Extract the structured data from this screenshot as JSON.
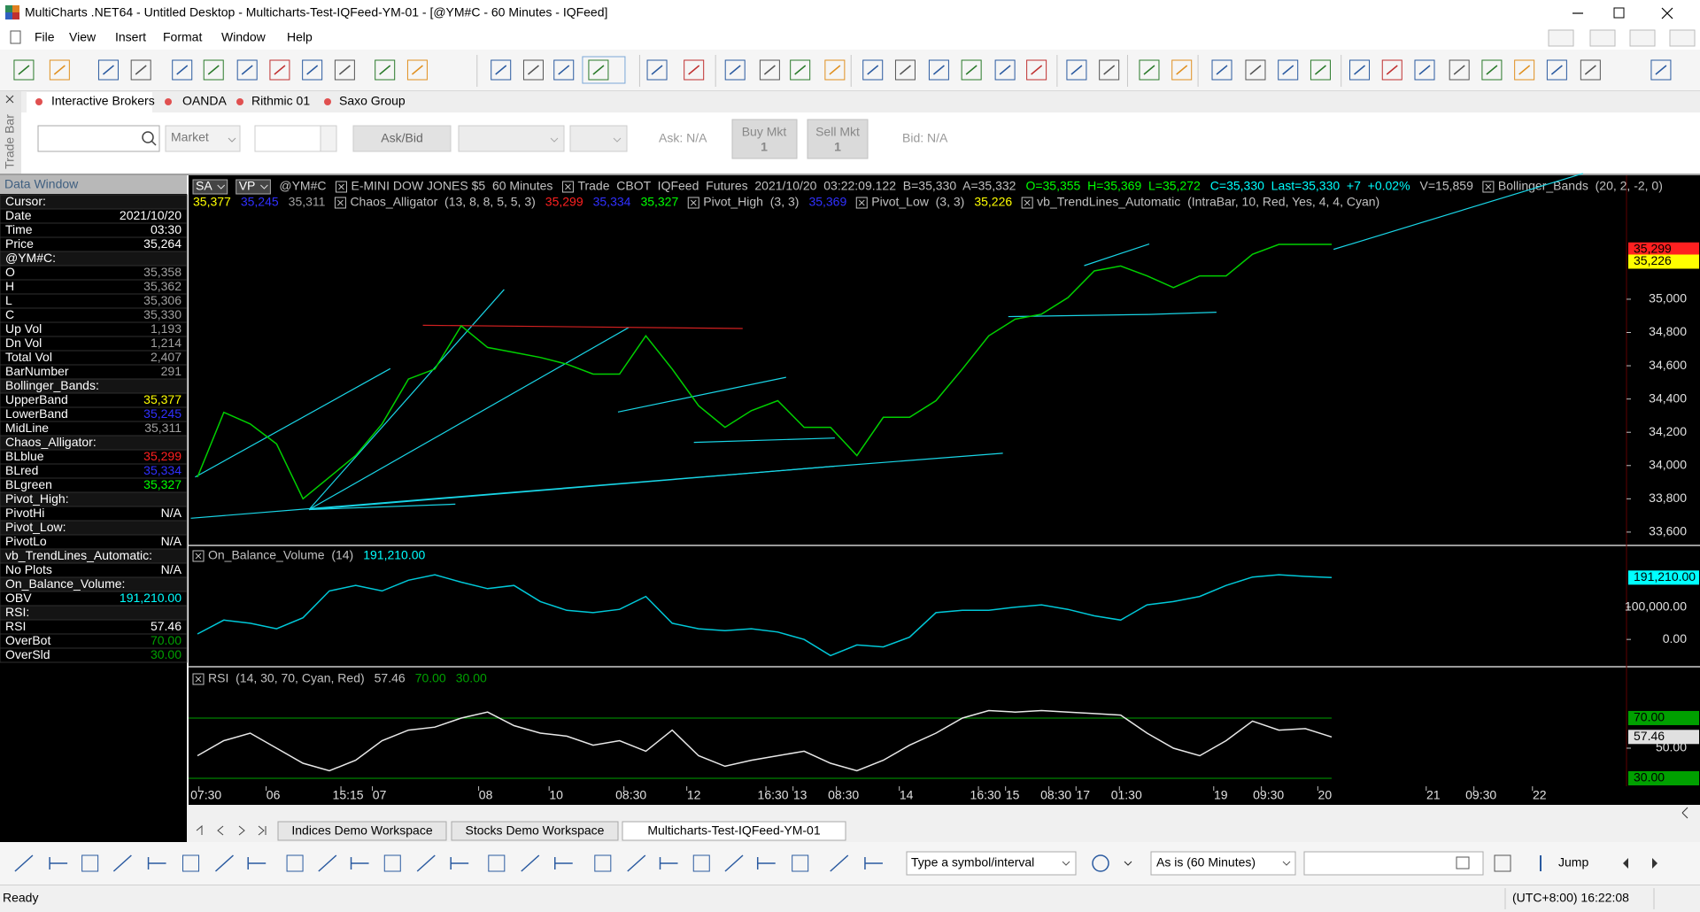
{
  "window": {
    "title": "MultiCharts .NET64 - Untitled Desktop - Multicharts-Test-IQFeed-YM-01 - [@YM#C - 60 Minutes - IQFeed]"
  },
  "menu": [
    "File",
    "View",
    "Insert",
    "Format",
    "Window",
    "Help"
  ],
  "trade_bar": {
    "side_label": "Trade Bar",
    "tabs": [
      "Interactive Brokers",
      "OANDA",
      "Rithmic 01",
      "Saxo Group"
    ],
    "order_type": "Market",
    "price_source": "Ask/Bid",
    "buy": {
      "label": "Buy Mkt",
      "qty": "1"
    },
    "sell": {
      "label": "Sell Mkt",
      "qty": "1"
    },
    "ask": "Ask: N/A",
    "bid": "Bid: N/A"
  },
  "data_window": {
    "title": "Data Window",
    "rows": [
      {
        "label": "Cursor:"
      },
      {
        "label": "Date",
        "value": "2021/10/20"
      },
      {
        "label": "Time",
        "value": "03:30"
      },
      {
        "label": "Price",
        "value": "35,264"
      },
      {
        "label": "@YM#C:"
      },
      {
        "label": "O",
        "value": "35,358",
        "color": "#a0a0a0"
      },
      {
        "label": "H",
        "value": "35,362",
        "color": "#a0a0a0"
      },
      {
        "label": "L",
        "value": "35,306",
        "color": "#a0a0a0"
      },
      {
        "label": "C",
        "value": "35,330",
        "color": "#a0a0a0"
      },
      {
        "label": "Up Vol",
        "value": "1,193",
        "color": "#a0a0a0"
      },
      {
        "label": "Dn Vol",
        "value": "1,214",
        "color": "#a0a0a0"
      },
      {
        "label": "Total Vol",
        "value": "2,407",
        "color": "#a0a0a0"
      },
      {
        "label": "BarNumber",
        "value": "291",
        "color": "#a0a0a0"
      },
      {
        "label": "Bollinger_Bands:"
      },
      {
        "label": "UpperBand",
        "value": "35,377",
        "color": "#ffff00"
      },
      {
        "label": "LowerBand",
        "value": "35,245",
        "color": "#3030ff"
      },
      {
        "label": "MidLine",
        "value": "35,311",
        "color": "#a0a0a0"
      },
      {
        "label": "Chaos_Alligator:"
      },
      {
        "label": "BLblue",
        "value": "35,299",
        "color": "#ff2020"
      },
      {
        "label": "BLred",
        "value": "35,334",
        "color": "#3030ff"
      },
      {
        "label": "BLgreen",
        "value": "35,327",
        "color": "#00ff00"
      },
      {
        "label": "Pivot_High:"
      },
      {
        "label": "PivotHi",
        "value": "N/A"
      },
      {
        "label": "Pivot_Low:"
      },
      {
        "label": "PivotLo",
        "value": "N/A"
      },
      {
        "label": "vb_TrendLines_Automatic:"
      },
      {
        "label": "No Plots",
        "value": "N/A"
      },
      {
        "label": "On_Balance_Volume:"
      },
      {
        "label": "OBV",
        "value": "191,210.00",
        "color": "#00ffff"
      },
      {
        "label": "RSI:"
      },
      {
        "label": "RSI",
        "value": "57.46"
      },
      {
        "label": "OverBot",
        "value": "70.00",
        "color": "#00a000"
      },
      {
        "label": "OverSld",
        "value": "30.00",
        "color": "#00a000"
      }
    ]
  },
  "chart": {
    "header": [
      {
        "text": "SA",
        "color": "#ffffff",
        "boxed": true
      },
      {
        "text": "VP",
        "color": "#ffffff",
        "boxed": true
      },
      {
        "text": "@YM#C",
        "color": "#c0c0c0"
      },
      {
        "text": "E-MINI DOW JONES $5  60 Minutes",
        "color": "#c0c0c0",
        "checkbox": true
      },
      {
        "text": "Trade  CBOT  IQFeed  Futures  2021/10/20  03:22:09.122  B=35,330  A=35,332",
        "color": "#c0c0c0",
        "checkbox": true
      },
      {
        "text": "O=35,355  H=35,369  L=35,272",
        "color": "#00ff00"
      },
      {
        "text": "C=35,330  Last=35,330  +7  +0.02%",
        "color": "#00ffff"
      },
      {
        "text": "V=15,859",
        "color": "#c0c0c0"
      },
      {
        "text": "Bollinger_Bands  (20, 2, -2, 0)",
        "color": "#c0c0c0",
        "checkbox": true
      }
    ],
    "studies": [
      {
        "text": "35,377",
        "color": "#ffff00"
      },
      {
        "text": "35,245",
        "color": "#3030ff"
      },
      {
        "text": "35,311",
        "color": "#a0a0a0"
      },
      {
        "text": "Chaos_Alligator  (13, 8, 8, 5, 5, 3)",
        "color": "#c0c0c0",
        "checkbox": true
      },
      {
        "text": "35,299",
        "color": "#ff2020"
      },
      {
        "text": "35,334",
        "color": "#3030ff"
      },
      {
        "text": "35,327",
        "color": "#00ff00"
      },
      {
        "text": "Pivot_High  (3, 3)",
        "color": "#c0c0c0",
        "checkbox": true
      },
      {
        "text": "35,369",
        "color": "#3030ff"
      },
      {
        "text": "Pivot_Low  (3, 3)",
        "color": "#c0c0c0",
        "checkbox": true
      },
      {
        "text": "35,226",
        "color": "#ffff00"
      },
      {
        "text": "vb_TrendLines_Automatic  (IntraBar, 10, Red, Yes, 4, 4, Cyan)",
        "color": "#c0c0c0",
        "checkbox": true
      }
    ],
    "price": {
      "type": "line",
      "color": "#00d000",
      "ylim": [
        33525,
        35745
      ],
      "yticks": [
        {
          "value": 33600,
          "label": "33,600"
        },
        {
          "value": 33800,
          "label": "33,800"
        },
        {
          "value": 34000,
          "label": "34,000"
        },
        {
          "value": 34200,
          "label": "34,200"
        },
        {
          "value": 34400,
          "label": "34,400"
        },
        {
          "value": 34600,
          "label": "34,600"
        },
        {
          "value": 34800,
          "label": "34,800"
        },
        {
          "value": 35000,
          "label": "35,000"
        }
      ],
      "values": [
        33930,
        34320,
        34250,
        34130,
        33800,
        33930,
        34060,
        34250,
        34520,
        34580,
        34840,
        34710,
        34680,
        34650,
        34610,
        34550,
        34550,
        34780,
        34580,
        34360,
        34230,
        34330,
        34390,
        34230,
        34230,
        34060,
        34290,
        34290,
        34390,
        34580,
        34780,
        34880,
        34910,
        35010,
        35170,
        35200,
        35140,
        35070,
        35140,
        35140,
        35270,
        35330,
        35330,
        35330
      ],
      "markers": [
        {
          "value": 35299,
          "label": "35,299",
          "color": "#ff2020"
        },
        {
          "value": 35226,
          "label": "35,226",
          "color": "#ffff00"
        }
      ]
    },
    "obv": {
      "type": "line",
      "color": "#00c8d8",
      "header": [
        {
          "text": "On_Balance_Volume  (14)",
          "color": "#c0c0c0",
          "checkbox": true
        },
        {
          "text": "191,210.00",
          "color": "#00ffff"
        }
      ],
      "ylim": [
        -81700,
        288000
      ],
      "yticks": [
        {
          "value": 0,
          "label": "0.00"
        },
        {
          "value": 100000,
          "label": "100,000.00"
        }
      ],
      "values": [
        17000,
        60000,
        50000,
        33000,
        67000,
        150000,
        167000,
        150000,
        183000,
        200000,
        177000,
        157000,
        167000,
        117000,
        90000,
        83000,
        93000,
        133000,
        50000,
        33000,
        27000,
        33000,
        23000,
        0,
        -50000,
        -17000,
        -23000,
        7000,
        83000,
        90000,
        90000,
        100000,
        107000,
        93000,
        73000,
        60000,
        107000,
        117000,
        133000,
        167000,
        193000,
        200000,
        195000,
        191210
      ],
      "markers": [
        {
          "value": 191210,
          "label": "191,210.00",
          "color": "#00ffff"
        }
      ]
    },
    "rsi": {
      "type": "line",
      "color": "#e8e8e8",
      "header": [
        {
          "text": "RSI  (14, 30, 70, Cyan, Red)",
          "color": "#c0c0c0",
          "checkbox": true
        },
        {
          "text": "57.46",
          "color": "#c0c0c0"
        },
        {
          "text": "70.00",
          "color": "#00a000"
        },
        {
          "text": "30.00",
          "color": "#00a000"
        }
      ],
      "ylim": [
        24.7,
        103.5
      ],
      "yticks": [
        {
          "value": 50,
          "label": "50.00"
        }
      ],
      "values": [
        45,
        55,
        60,
        50,
        40,
        35,
        42,
        55,
        62,
        64,
        70,
        74,
        65,
        60,
        58,
        52,
        55,
        48,
        62,
        45,
        38,
        42,
        45,
        48,
        40,
        35,
        42,
        52,
        60,
        70,
        75,
        74,
        75,
        74,
        73,
        72,
        60,
        50,
        45,
        55,
        68,
        62,
        63,
        57.46
      ],
      "levels": [
        {
          "value": 70,
          "label": "70.00",
          "color": "#00a000"
        },
        {
          "value": 30,
          "label": "30.00",
          "color": "#00a000"
        }
      ],
      "markers": [
        {
          "value": 57.46,
          "label": "57.46",
          "color": "#e0e0e0"
        }
      ]
    },
    "time_labels": [
      "07:30",
      "06",
      "15:15",
      "07",
      "08",
      "10",
      "08:30",
      "12",
      "16:30",
      "13",
      "08:30",
      "14",
      "16:30",
      "15",
      "08:30",
      "17",
      "01:30",
      "19",
      "09:30",
      "20",
      "21",
      "09:30",
      "22"
    ]
  },
  "workspaces": {
    "tabs": [
      "Indices Demo Workspace",
      "Stocks Demo Workspace",
      "Multicharts-Test-IQFeed-YM-01"
    ],
    "active": 2
  },
  "drawing_bar": {
    "symbol_box": "Type a symbol/interval",
    "interval_box": "As is (60 Minutes)",
    "jump": "Jump"
  },
  "status_bar": {
    "state": "Ready",
    "clock": "(UTC+8:00) 16:22:08"
  }
}
